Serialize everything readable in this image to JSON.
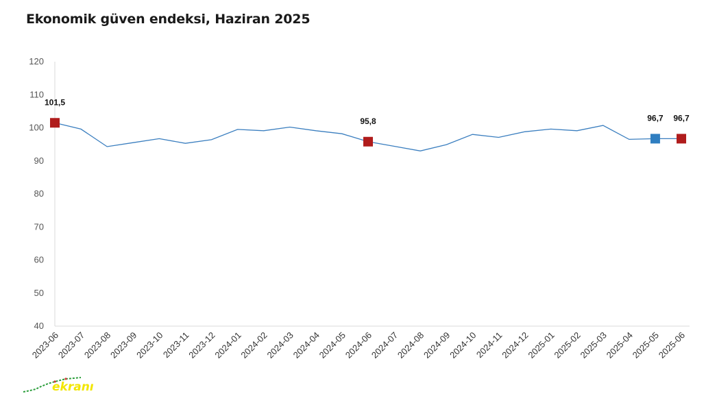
{
  "chart_data": {
    "type": "line",
    "title": "Ekonomik güven endeksi, Haziran 2025",
    "xlabel": "",
    "ylabel": "",
    "ylim": [
      40,
      120
    ],
    "yticks": [
      40,
      50,
      60,
      70,
      80,
      90,
      100,
      110,
      120
    ],
    "grid": false,
    "legend": "none",
    "categories": [
      "2023-06",
      "2023-07",
      "2023-08",
      "2023-09",
      "2023-10",
      "2023-11",
      "2023-12",
      "2024-01",
      "2024-02",
      "2024-03",
      "2024-04",
      "2024-05",
      "2024-06",
      "2024-07",
      "2024-08",
      "2024-09",
      "2024-10",
      "2024-11",
      "2024-12",
      "2025-01",
      "2025-02",
      "2025-03",
      "2025-04",
      "2025-05",
      "2025-06"
    ],
    "series": [
      {
        "values": [
          101.5,
          99.6,
          94.3,
          95.5,
          96.7,
          95.3,
          96.4,
          99.5,
          99.1,
          100.2,
          99.1,
          98.2,
          95.8,
          94.4,
          93.0,
          94.9,
          98.0,
          97.1,
          98.8,
          99.6,
          99.1,
          100.7,
          96.5,
          96.7,
          96.7
        ],
        "color": "#3a7ebf"
      }
    ],
    "markers": [
      {
        "category": "2023-06",
        "value": 101.5,
        "label": "101,5",
        "color": "#b01c1c"
      },
      {
        "category": "2024-06",
        "value": 95.8,
        "label": "95,8",
        "color": "#b01c1c"
      },
      {
        "category": "2025-05",
        "value": 96.7,
        "label": "96,7",
        "color": "#2f7ec1"
      },
      {
        "category": "2025-06",
        "value": 96.7,
        "label": "96,7",
        "color": "#b01c1c"
      }
    ]
  },
  "watermark": {
    "text": "ekranı",
    "color": "#f2e600"
  }
}
